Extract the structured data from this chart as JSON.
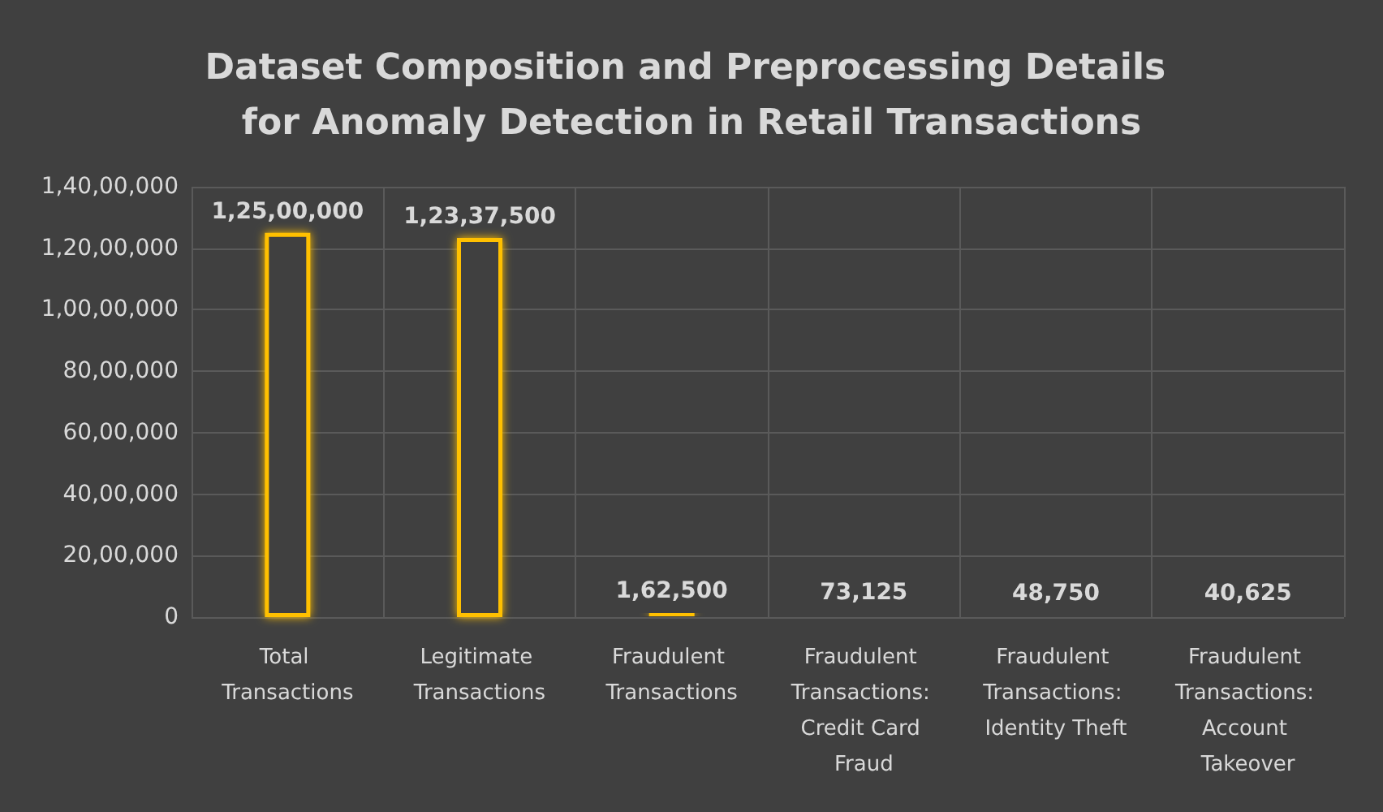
{
  "chart_data": {
    "type": "bar",
    "title": "Dataset Composition and Preprocessing Details for Anomaly Detection in Retail Transactions",
    "categories": [
      "Total Transactions",
      "Legitimate Transactions",
      "Fraudulent Transactions",
      "Fraudulent Transactions: Credit Card Fraud",
      "Fraudulent Transactions: Identity Theft",
      "Fraudulent Transactions: Account Takeover"
    ],
    "values": [
      12500000,
      12337500,
      162500,
      73125,
      48750,
      40625
    ],
    "value_labels": [
      "1,25,00,000",
      "1,23,37,500",
      "1,62,500",
      "73,125",
      "48,750",
      "40,625"
    ],
    "color": "#ffc000",
    "ylim": [
      0,
      14000000
    ],
    "yticks": [
      {
        "value": 0,
        "label": "0"
      },
      {
        "value": 2000000,
        "label": "20,00,000"
      },
      {
        "value": 4000000,
        "label": "40,00,000"
      },
      {
        "value": 6000000,
        "label": "60,00,000"
      },
      {
        "value": 8000000,
        "label": "80,00,000"
      },
      {
        "value": 10000000,
        "label": "1,00,00,000"
      },
      {
        "value": 12000000,
        "label": "1,20,00,000"
      },
      {
        "value": 14000000,
        "label": "1,40,00,000"
      }
    ],
    "grid": true
  }
}
